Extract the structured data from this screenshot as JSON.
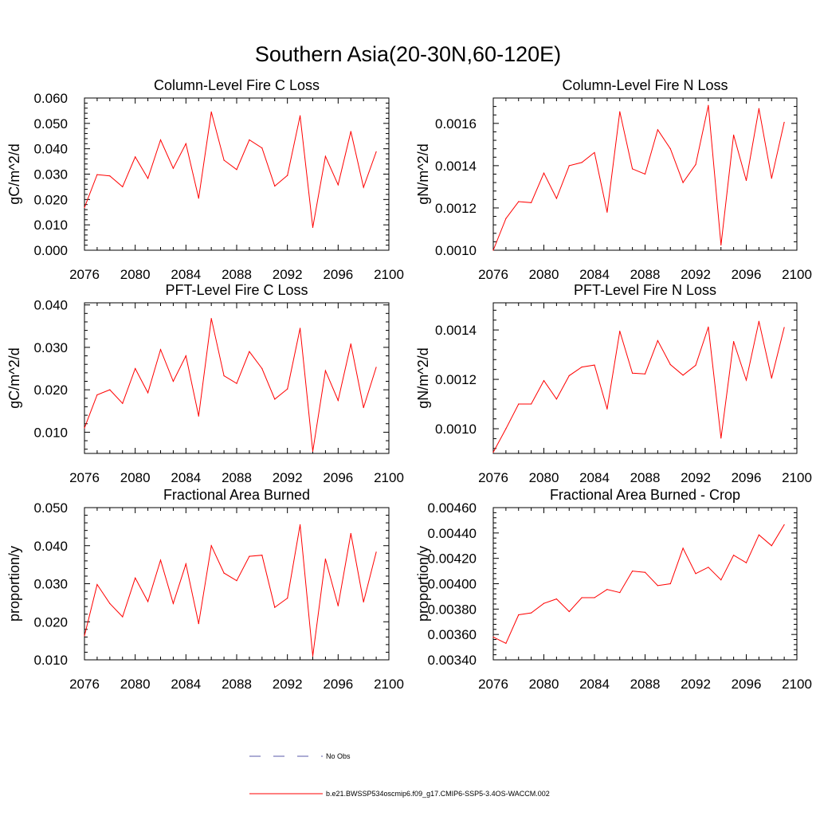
{
  "title": "Southern Asia(20-30N,60-120E)",
  "colors": {
    "series": "#ff0000",
    "obs": "#5a5aaa",
    "axis": "#000000"
  },
  "legend": {
    "obs_label": "No Obs",
    "model_label": "b.e21.BWSSP534oscmip6.f09_g17.CMIP6-SSP5-3.4OS-WACCM.002"
  },
  "chart_data": [
    {
      "type": "line",
      "title": "Column-Level Fire C Loss",
      "ylabel": "gC/m^2/d",
      "xlim": [
        2076,
        2100
      ],
      "ylim": [
        0.0,
        0.06
      ],
      "xticks": [
        "2076",
        "2080",
        "2084",
        "2088",
        "2092",
        "2096",
        "2100"
      ],
      "yticks": [
        "0.000",
        "0.010",
        "0.020",
        "0.030",
        "0.040",
        "0.050",
        "0.060"
      ],
      "x": [
        2076,
        2077,
        2078,
        2079,
        2080,
        2081,
        2082,
        2083,
        2084,
        2085,
        2086,
        2087,
        2088,
        2089,
        2090,
        2091,
        2092,
        2093,
        2094,
        2095,
        2096,
        2097,
        2098,
        2099
      ],
      "values": [
        0.0168,
        0.0298,
        0.0293,
        0.025,
        0.0368,
        0.0283,
        0.0435,
        0.0323,
        0.042,
        0.0205,
        0.0545,
        0.0355,
        0.0318,
        0.0435,
        0.0403,
        0.0253,
        0.0295,
        0.053,
        0.009,
        0.037,
        0.0258,
        0.0468,
        0.0248,
        0.0388
      ]
    },
    {
      "type": "line",
      "title": "Column-Level Fire N Loss",
      "ylabel": "gN/m^2/d",
      "xlim": [
        2076,
        2100
      ],
      "ylim": [
        0.001,
        0.00172
      ],
      "xticks": [
        "2076",
        "2080",
        "2084",
        "2088",
        "2092",
        "2096",
        "2100"
      ],
      "yticks": [
        "0.0010",
        "0.0012",
        "0.0014",
        "0.0016"
      ],
      "x": [
        2076,
        2077,
        2078,
        2079,
        2080,
        2081,
        2082,
        2083,
        2084,
        2085,
        2086,
        2087,
        2088,
        2089,
        2090,
        2091,
        2092,
        2093,
        2094,
        2095,
        2096,
        2097,
        2098,
        2099
      ],
      "values": [
        0.001,
        0.00115,
        0.00123,
        0.001225,
        0.001365,
        0.001245,
        0.0014,
        0.001415,
        0.001462,
        0.00118,
        0.001655,
        0.001385,
        0.00136,
        0.00157,
        0.00148,
        0.00132,
        0.001405,
        0.001685,
        0.001025,
        0.001545,
        0.00133,
        0.00167,
        0.00134,
        0.001605
      ]
    },
    {
      "type": "line",
      "title": "PFT-Level Fire C Loss",
      "ylabel": "gC/m^2/d",
      "xlim": [
        2076,
        2100
      ],
      "ylim": [
        0.005,
        0.0405
      ],
      "xticks": [
        "2076",
        "2080",
        "2084",
        "2088",
        "2092",
        "2096",
        "2100"
      ],
      "yticks": [
        "0.010",
        "0.020",
        "0.030",
        "0.040"
      ],
      "x": [
        2076,
        2077,
        2078,
        2079,
        2080,
        2081,
        2082,
        2083,
        2084,
        2085,
        2086,
        2087,
        2088,
        2089,
        2090,
        2091,
        2092,
        2093,
        2094,
        2095,
        2096,
        2097,
        2098,
        2099
      ],
      "values": [
        0.011,
        0.0188,
        0.02,
        0.0168,
        0.025,
        0.0193,
        0.0295,
        0.022,
        0.028,
        0.0138,
        0.0368,
        0.0233,
        0.0215,
        0.029,
        0.025,
        0.0178,
        0.0202,
        0.0345,
        0.0055,
        0.0245,
        0.0175,
        0.0308,
        0.0158,
        0.0253
      ]
    },
    {
      "type": "line",
      "title": "PFT-Level Fire N Loss",
      "ylabel": "gN/m^2/d",
      "xlim": [
        2076,
        2100
      ],
      "ylim": [
        0.0009,
        0.00151
      ],
      "xticks": [
        "2076",
        "2080",
        "2084",
        "2088",
        "2092",
        "2096",
        "2100"
      ],
      "yticks": [
        "0.0010",
        "0.0012",
        "0.0014"
      ],
      "x": [
        2076,
        2077,
        2078,
        2079,
        2080,
        2081,
        2082,
        2083,
        2084,
        2085,
        2086,
        2087,
        2088,
        2089,
        2090,
        2091,
        2092,
        2093,
        2094,
        2095,
        2096,
        2097,
        2098,
        2099
      ],
      "values": [
        0.000905,
        0.001,
        0.0011,
        0.0011,
        0.001195,
        0.00112,
        0.001215,
        0.00125,
        0.001258,
        0.00108,
        0.001395,
        0.001225,
        0.001222,
        0.001357,
        0.00126,
        0.001217,
        0.001257,
        0.001412,
        0.000962,
        0.001353,
        0.001197,
        0.001435,
        0.001205,
        0.00141
      ]
    },
    {
      "type": "line",
      "title": "Fractional Area Burned",
      "ylabel": "proportion/y",
      "xlim": [
        2076,
        2100
      ],
      "ylim": [
        0.01,
        0.05
      ],
      "xticks": [
        "2076",
        "2080",
        "2084",
        "2088",
        "2092",
        "2096",
        "2100"
      ],
      "yticks": [
        "0.010",
        "0.020",
        "0.030",
        "0.040",
        "0.050"
      ],
      "x": [
        2076,
        2077,
        2078,
        2079,
        2080,
        2081,
        2082,
        2083,
        2084,
        2085,
        2086,
        2087,
        2088,
        2089,
        2090,
        2091,
        2092,
        2093,
        2094,
        2095,
        2096,
        2097,
        2098,
        2099
      ],
      "values": [
        0.0163,
        0.0298,
        0.0248,
        0.0213,
        0.0315,
        0.0253,
        0.0362,
        0.0248,
        0.0352,
        0.0195,
        0.04,
        0.0328,
        0.0308,
        0.0372,
        0.0375,
        0.0238,
        0.0262,
        0.0455,
        0.011,
        0.0365,
        0.0242,
        0.0432,
        0.0252,
        0.0383
      ]
    },
    {
      "type": "line",
      "title": "Fractional Area Burned - Crop",
      "ylabel": "proportion/y",
      "xlim": [
        2076,
        2100
      ],
      "ylim": [
        0.0034,
        0.0046
      ],
      "xticks": [
        "2076",
        "2080",
        "2084",
        "2088",
        "2092",
        "2096",
        "2100"
      ],
      "yticks": [
        "0.00340",
        "0.00360",
        "0.00380",
        "0.00400",
        "0.00420",
        "0.00440",
        "0.00460"
      ],
      "x": [
        2076,
        2077,
        2078,
        2079,
        2080,
        2081,
        2082,
        2083,
        2084,
        2085,
        2086,
        2087,
        2088,
        2089,
        2090,
        2091,
        2092,
        2093,
        2094,
        2095,
        2096,
        2097,
        2098,
        2099
      ],
      "values": [
        0.00358,
        0.00353,
        0.003755,
        0.00377,
        0.003845,
        0.00388,
        0.00378,
        0.00389,
        0.00389,
        0.003955,
        0.00393,
        0.0041,
        0.00409,
        0.003985,
        0.004,
        0.00428,
        0.00408,
        0.00413,
        0.00403,
        0.004225,
        0.004165,
        0.004385,
        0.0043,
        0.004465
      ]
    }
  ]
}
